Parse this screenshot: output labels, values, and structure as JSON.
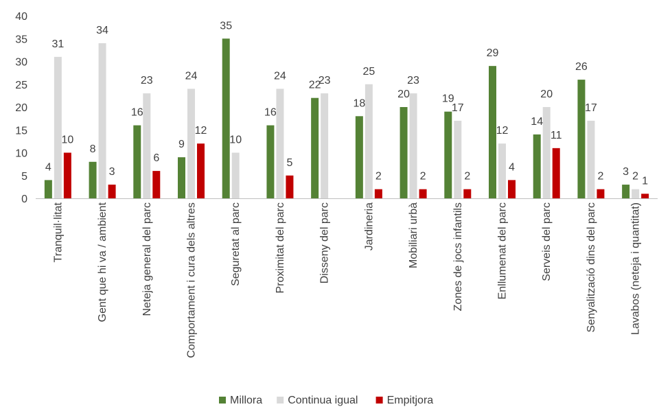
{
  "chart_data": {
    "type": "bar",
    "categories": [
      "Tranquil·litat",
      "Gent que hi va / ambient",
      "Neteja general del parc",
      "Comportament i cura dels altres",
      "Seguretat al parc",
      "Proximitat del parc",
      "Disseny del parc",
      "Jardineria",
      "Mobiliari urbà",
      "Zones de jocs infantils",
      "Enllumenat del parc",
      "Serveis del parc",
      "Senyalització dins del parc",
      "Lavabos (neteja i quantitat)"
    ],
    "series": [
      {
        "name": "Millora",
        "color": "#548235",
        "values": [
          4,
          8,
          16,
          9,
          35,
          16,
          22,
          18,
          20,
          19,
          29,
          14,
          26,
          3
        ]
      },
      {
        "name": "Continua igual",
        "color": "#d9d9d9",
        "values": [
          31,
          34,
          23,
          24,
          10,
          24,
          23,
          25,
          23,
          17,
          12,
          20,
          17,
          2
        ]
      },
      {
        "name": "Empitjora",
        "color": "#c00000",
        "values": [
          10,
          3,
          6,
          12,
          null,
          5,
          null,
          2,
          2,
          2,
          4,
          11,
          2,
          1
        ]
      }
    ],
    "ylim": [
      0,
      40
    ],
    "yticks": [
      0,
      5,
      10,
      15,
      20,
      25,
      30,
      35,
      40
    ],
    "grid": false,
    "legend": "bottom",
    "title": "",
    "xlabel": "",
    "ylabel": ""
  }
}
